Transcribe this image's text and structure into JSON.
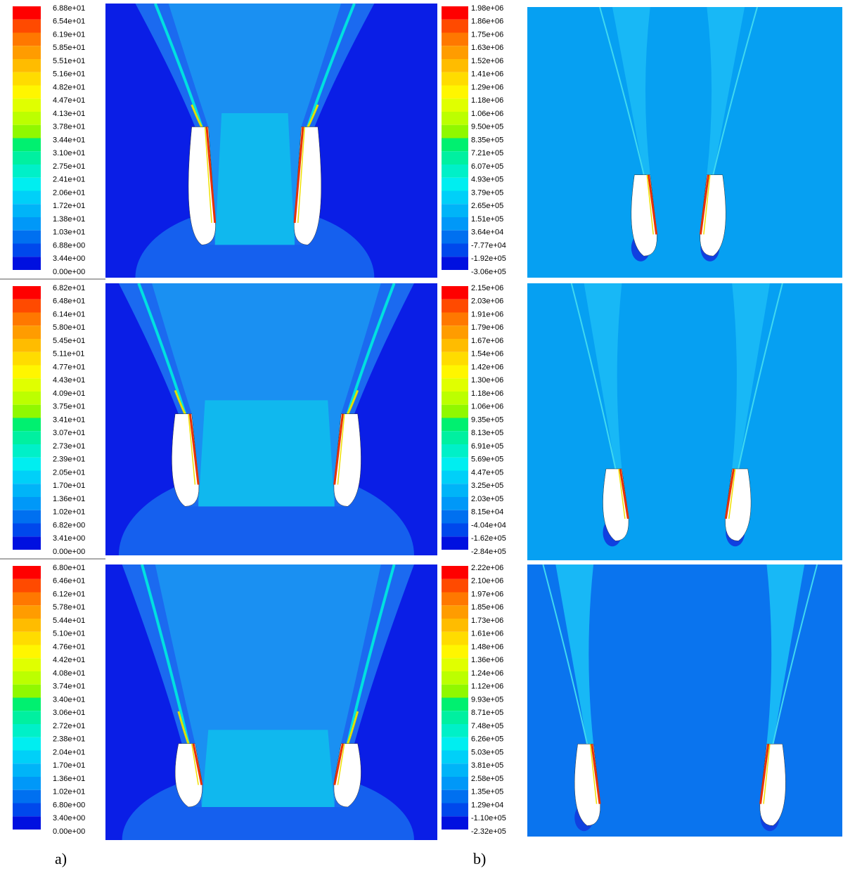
{
  "columns": [
    {
      "caption": "a)",
      "panels": [
        {
          "colorbar_labels": [
            "6.88e+01",
            "6.54e+01",
            "6.19e+01",
            "5.85e+01",
            "5.51e+01",
            "5.16e+01",
            "4.82e+01",
            "4.47e+01",
            "4.13e+01",
            "3.78e+01",
            "3.44e+01",
            "3.10e+01",
            "2.75e+01",
            "2.41e+01",
            "2.06e+01",
            "1.72e+01",
            "1.38e+01",
            "1.03e+01",
            "6.88e+00",
            "3.44e+00",
            "0.00e+00"
          ]
        },
        {
          "colorbar_labels": [
            "6.82e+01",
            "6.48e+01",
            "6.14e+01",
            "5.80e+01",
            "5.45e+01",
            "5.11e+01",
            "4.77e+01",
            "4.43e+01",
            "4.09e+01",
            "3.75e+01",
            "3.41e+01",
            "3.07e+01",
            "2.73e+01",
            "2.39e+01",
            "2.05e+01",
            "1.70e+01",
            "1.36e+01",
            "1.02e+01",
            "6.82e+00",
            "3.41e+00",
            "0.00e+00"
          ]
        },
        {
          "colorbar_labels": [
            "6.80e+01",
            "6.46e+01",
            "6.12e+01",
            "5.78e+01",
            "5.44e+01",
            "5.10e+01",
            "4.76e+01",
            "4.42e+01",
            "4.08e+01",
            "3.74e+01",
            "3.40e+01",
            "3.06e+01",
            "2.72e+01",
            "2.38e+01",
            "2.04e+01",
            "1.70e+01",
            "1.36e+01",
            "1.02e+01",
            "6.80e+00",
            "3.40e+00",
            "0.00e+00"
          ]
        }
      ]
    },
    {
      "caption": "b)",
      "panels": [
        {
          "colorbar_labels": [
            "1.98e+06",
            "1.86e+06",
            "1.75e+06",
            "1.63e+06",
            "1.52e+06",
            "1.41e+06",
            "1.29e+06",
            "1.18e+06",
            "1.06e+06",
            "9.50e+05",
            "8.35e+05",
            "7.21e+05",
            "6.07e+05",
            "4.93e+05",
            "3.79e+05",
            "2.65e+05",
            "1.51e+05",
            "3.64e+04",
            "-7.77e+04",
            "-1.92e+05",
            "-3.06e+05"
          ]
        },
        {
          "colorbar_labels": [
            "2.15e+06",
            "2.03e+06",
            "1.91e+06",
            "1.79e+06",
            "1.67e+06",
            "1.54e+06",
            "1.42e+06",
            "1.30e+06",
            "1.18e+06",
            "1.06e+06",
            "9.35e+05",
            "8.13e+05",
            "6.91e+05",
            "5.69e+05",
            "4.47e+05",
            "3.25e+05",
            "2.03e+05",
            "8.15e+04",
            "-4.04e+04",
            "-1.62e+05",
            "-2.84e+05"
          ]
        },
        {
          "colorbar_labels": [
            "2.22e+06",
            "2.10e+06",
            "1.97e+06",
            "1.85e+06",
            "1.73e+06",
            "1.61e+06",
            "1.48e+06",
            "1.36e+06",
            "1.24e+06",
            "1.12e+06",
            "9.93e+05",
            "8.71e+05",
            "7.48e+05",
            "6.26e+05",
            "5.03e+05",
            "3.81e+05",
            "2.58e+05",
            "1.35e+05",
            "1.29e+04",
            "-1.10e+05",
            "-2.32e+05"
          ]
        }
      ]
    }
  ]
}
